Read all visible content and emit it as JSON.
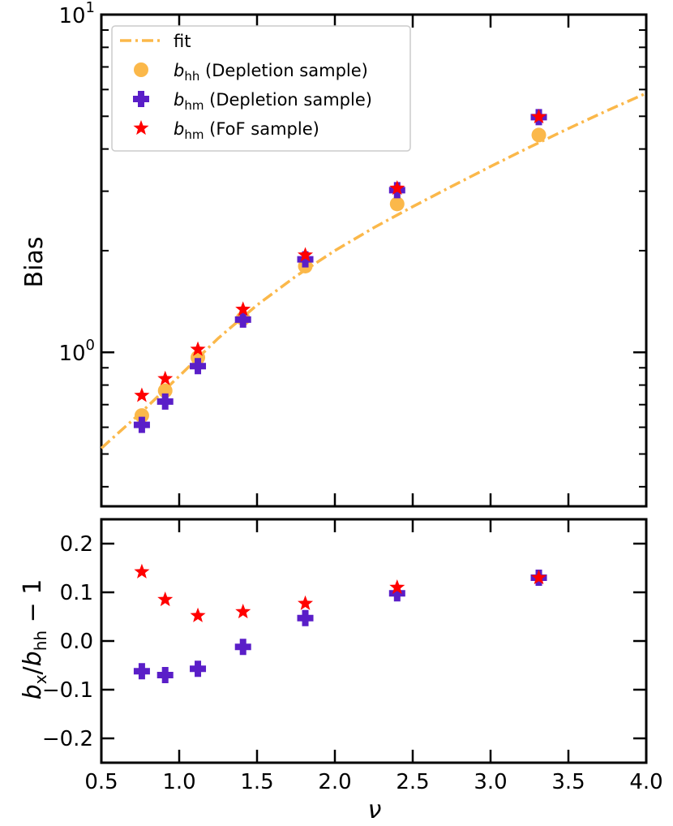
{
  "colors": {
    "fit": "#fbb84a",
    "bhh_depletion": "#fbb84a",
    "bhm_depletion": "#5a1ec8",
    "bhm_fof": "#ff0000",
    "axes": "#000000"
  },
  "chart_data": [
    {
      "type": "scatter",
      "panel": "top",
      "xlabel": "ν",
      "ylabel": "Bias",
      "xlim": [
        0.5,
        4.0
      ],
      "ylim": [
        0.35,
        10
      ],
      "yscale": "log",
      "yticks": [
        {
          "value": 1,
          "base": "10",
          "exp": "0"
        },
        {
          "value": 10,
          "base": "10",
          "exp": "1"
        }
      ],
      "grid": false,
      "legend_position": "top-left",
      "legend": [
        {
          "id": "fit",
          "prefix": "",
          "sym": "",
          "sub": "",
          "suffix": "fit",
          "marker": "dashdot-line",
          "color": "#fbb84a"
        },
        {
          "id": "bhh",
          "prefix": "",
          "sym": "b",
          "sub": "hh",
          "suffix": " (Depletion sample)",
          "marker": "circle",
          "color": "#fbb84a"
        },
        {
          "id": "bhm_dep",
          "prefix": "",
          "sym": "b",
          "sub": "hm",
          "suffix": " (Depletion sample)",
          "marker": "plus",
          "color": "#5a1ec8"
        },
        {
          "id": "bhm_fof",
          "prefix": "",
          "sym": "b",
          "sub": "hm",
          "suffix": " (FoF sample)",
          "marker": "star",
          "color": "#ff0000"
        }
      ],
      "fit": {
        "x": [
          0.5,
          0.75,
          1.0,
          1.25,
          1.5,
          1.75,
          2.0,
          2.25,
          2.5,
          2.75,
          3.0,
          3.25,
          3.5,
          3.75,
          4.0
        ],
        "y": [
          0.52,
          0.66,
          0.85,
          1.1,
          1.38,
          1.68,
          2.0,
          2.34,
          2.7,
          3.1,
          3.55,
          4.05,
          4.6,
          5.2,
          5.85
        ]
      },
      "x": [
        0.76,
        0.91,
        1.12,
        1.41,
        1.81,
        2.4,
        3.31
      ],
      "series": [
        {
          "id": "bhh",
          "marker": "circle",
          "color": "#fbb84a",
          "values": [
            0.65,
            0.77,
            0.965,
            1.26,
            1.8,
            2.75,
            4.4
          ]
        },
        {
          "id": "bhm_dep",
          "marker": "plus",
          "color": "#5a1ec8",
          "values": [
            0.61,
            0.715,
            0.91,
            1.25,
            1.885,
            3.02,
            4.97
          ]
        },
        {
          "id": "bhm_fof",
          "marker": "star",
          "color": "#ff0000",
          "values": [
            0.745,
            0.835,
            1.02,
            1.34,
            1.94,
            3.06,
            4.98
          ]
        }
      ]
    },
    {
      "type": "scatter",
      "panel": "bottom",
      "xlabel": "ν",
      "ylabel": {
        "prefix": "",
        "sym1": "b",
        "sub1": "x",
        "mid": "/",
        "sym2": "b",
        "sub2": "hh",
        "suffix": " − 1"
      },
      "xlim": [
        0.5,
        4.0
      ],
      "ylim": [
        -0.25,
        0.25
      ],
      "xticks": [
        "0.5",
        "1.0",
        "1.5",
        "2.0",
        "2.5",
        "3.0",
        "3.5",
        "4.0"
      ],
      "yticks": [
        "−0.2",
        "−0.1",
        "0.0",
        "0.1",
        "0.2"
      ],
      "grid": false,
      "x": [
        0.76,
        0.91,
        1.12,
        1.41,
        1.81,
        2.4,
        3.31
      ],
      "series": [
        {
          "id": "bhm_dep",
          "marker": "plus",
          "color": "#5a1ec8",
          "values": [
            -0.062,
            -0.07,
            -0.057,
            -0.012,
            0.047,
            0.098,
            0.13
          ]
        },
        {
          "id": "bhm_fof",
          "marker": "star",
          "color": "#ff0000",
          "values": [
            0.142,
            0.085,
            0.052,
            0.06,
            0.077,
            0.11,
            0.13
          ]
        }
      ]
    }
  ]
}
